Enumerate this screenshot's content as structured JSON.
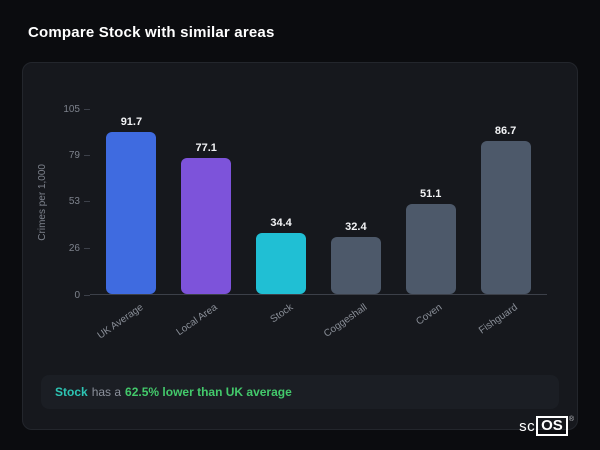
{
  "page": {
    "title": "Compare Stock with similar areas"
  },
  "chart_data": {
    "type": "bar",
    "categories": [
      "UK Average",
      "Local Area",
      "Stock",
      "Coggeshall",
      "Coven",
      "Fishguard"
    ],
    "values": [
      91.7,
      77.1,
      34.4,
      32.4,
      51.1,
      86.7
    ],
    "title": "",
    "xlabel": "",
    "ylabel": "Crimes per 1,000",
    "yticks": [
      0,
      26,
      53,
      79,
      105
    ],
    "ylim": [
      0,
      105
    ],
    "grid": false,
    "legend": "none",
    "bar_colors": [
      "#3f6be0",
      "#7d53da",
      "#20bfd4",
      "#4d596a",
      "#4d596a",
      "#4d596a"
    ]
  },
  "note": {
    "subject": "Stock",
    "middle": "has a",
    "highlight": "62.5% lower than UK average"
  },
  "logo": {
    "prefix": "sc",
    "box": "OS",
    "registered": "®"
  }
}
